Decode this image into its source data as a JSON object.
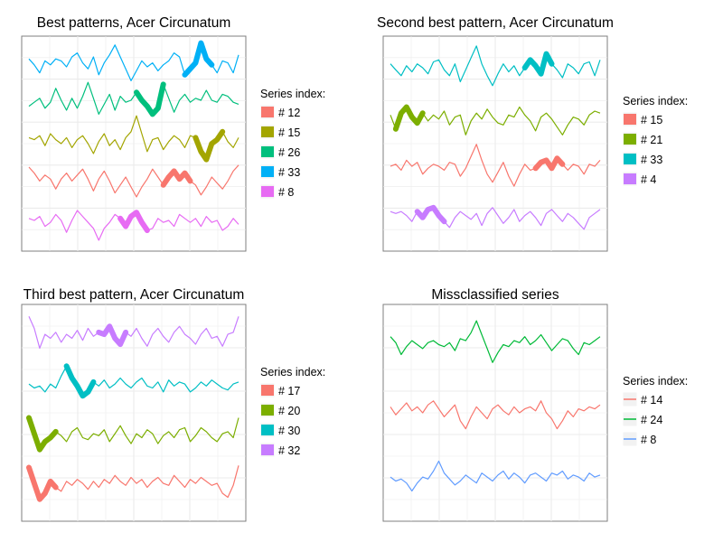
{
  "legend_title": "Series index:",
  "colors": {
    "red": "#F8766D",
    "olive": "#A3A500",
    "green": "#00BF7D",
    "blue": "#00B0F6",
    "magenta": "#E76BF3",
    "green4": "#7CAE00",
    "cyan": "#00BFC4",
    "purple": "#C77CFF",
    "green3": "#00BA38",
    "blue3": "#619CFF"
  },
  "chart_data": [
    {
      "type": "line",
      "title": "Best patterns, Acer Circunatum",
      "xlabel": "",
      "ylabel": "",
      "grid": true,
      "axes_ticks": false,
      "legend_placement": "right",
      "series": [
        {
          "name": "# 12",
          "color": "red",
          "offset": 1,
          "values": [
            0.8,
            0.5,
            0.1,
            0.4,
            0.2,
            -0.3,
            0.2,
            0.5,
            0.1,
            0.4,
            0.7,
            0.2,
            -0.4,
            0.2,
            0.6,
            0.1,
            -0.5,
            -0.1,
            0.3,
            -0.2,
            -0.7,
            -0.2,
            0.2,
            0.7,
            0.3,
            -0.1,
            0.3,
            0.6,
            0.2,
            0.5,
            0.1,
            -0.1,
            -0.6,
            -0.2,
            0.3,
            0.0,
            -0.3,
            0.1,
            0.6,
            0.9
          ],
          "highlight": [
            25,
            30
          ]
        },
        {
          "name": "# 15",
          "color": "olive",
          "offset": 2,
          "values": [
            0.3,
            0.2,
            0.4,
            -0.1,
            0.5,
            0.2,
            0.0,
            0.3,
            -0.2,
            0.2,
            0.4,
            0.0,
            -0.5,
            0.1,
            0.5,
            -0.1,
            0.2,
            -0.3,
            0.3,
            0.6,
            1.4,
            0.5,
            -0.4,
            0.2,
            0.3,
            -0.3,
            0.1,
            0.4,
            0.2,
            -0.2,
            0.4,
            0.3,
            -0.4,
            -0.8,
            0.0,
            0.2,
            0.6,
            0.1,
            -0.2,
            0.3
          ],
          "highlight": [
            31,
            36
          ]
        },
        {
          "name": "# 26",
          "color": "green",
          "offset": 3,
          "values": [
            -0.1,
            0.1,
            0.3,
            -0.2,
            0.1,
            0.8,
            0.2,
            -0.3,
            0.3,
            -0.2,
            0.4,
            1.1,
            0.3,
            -0.5,
            0.0,
            0.5,
            -0.3,
            0.4,
            0.1,
            0.2,
            0.6,
            0.2,
            -0.1,
            -0.5,
            -0.2,
            1.0,
            0.3,
            -0.4,
            0.2,
            0.5,
            0.1,
            0.3,
            0.2,
            0.7,
            0.2,
            0.1,
            0.5,
            0.4,
            0.1,
            0.0
          ],
          "highlight": [
            20,
            25
          ]
        },
        {
          "name": "# 33",
          "color": "blue",
          "offset": 4,
          "values": [
            0.3,
            0.0,
            -0.4,
            0.2,
            0.0,
            0.3,
            0.2,
            -0.1,
            0.4,
            0.6,
            0.1,
            -0.2,
            0.4,
            -0.5,
            0.1,
            0.5,
            1.0,
            0.4,
            -0.2,
            -0.8,
            -0.3,
            0.2,
            -0.1,
            0.1,
            -0.3,
            0.0,
            0.2,
            0.6,
            0.4,
            -0.5,
            -0.2,
            0.1,
            1.1,
            0.3,
            0.0,
            -0.4,
            0.2,
            0.1,
            -0.4,
            0.5
          ],
          "highlight": [
            29,
            34
          ]
        },
        {
          "name": "# 8",
          "color": "magenta",
          "offset": 0,
          "values": [
            0.2,
            0.1,
            0.3,
            -0.2,
            0.0,
            0.4,
            0.1,
            -0.5,
            0.1,
            0.6,
            0.3,
            0.0,
            -0.3,
            -0.9,
            -0.3,
            0.0,
            0.4,
            0.2,
            -0.2,
            0.3,
            0.5,
            0.0,
            -0.4,
            -0.3,
            0.2,
            0.0,
            0.1,
            -0.2,
            0.4,
            0.2,
            0.0,
            0.2,
            -0.2,
            0.3,
            0.0,
            0.1,
            -0.4,
            -0.2,
            0.2,
            -0.1
          ],
          "highlight": [
            17,
            22
          ]
        }
      ]
    },
    {
      "type": "line",
      "title": "Second best pattern, Acer Circunatum",
      "xlabel": "",
      "ylabel": "",
      "grid": true,
      "axes_ticks": false,
      "legend_placement": "right",
      "series": [
        {
          "name": "# 15",
          "color": "red",
          "offset": 1,
          "values": [
            0.1,
            0.2,
            -0.1,
            0.4,
            0.1,
            0.3,
            -0.3,
            0.0,
            0.2,
            0.1,
            -0.1,
            0.3,
            0.2,
            -0.4,
            0.0,
            0.6,
            1.2,
            0.4,
            -0.3,
            -0.7,
            -0.2,
            0.3,
            -0.4,
            -0.9,
            -0.3,
            0.2,
            -0.1,
            0.0,
            0.3,
            0.4,
            0.0,
            0.5,
            0.2,
            -0.1,
            0.2,
            0.1,
            -0.3,
            0.2,
            0.1,
            0.4
          ],
          "highlight": [
            27,
            32
          ]
        },
        {
          "name": "# 21",
          "color": "green4",
          "offset": 2,
          "values": [
            0.2,
            -0.5,
            0.3,
            0.6,
            0.1,
            -0.2,
            0.3,
            -0.1,
            0.2,
            0.0,
            0.4,
            -0.3,
            0.1,
            0.2,
            -0.8,
            -0.1,
            0.3,
            0.0,
            0.5,
            0.1,
            -0.2,
            -0.3,
            0.2,
            0.1,
            0.6,
            0.2,
            -0.1,
            -0.6,
            0.1,
            0.3,
            0.0,
            -0.4,
            -0.8,
            -0.3,
            0.1,
            0.0,
            -0.3,
            0.2,
            0.4,
            0.3
          ],
          "highlight": [
            1,
            6
          ]
        },
        {
          "name": "# 33",
          "color": "cyan",
          "offset": 3,
          "values": [
            0.3,
            0.0,
            -0.3,
            0.2,
            -0.1,
            0.3,
            0.1,
            -0.2,
            0.4,
            0.5,
            0.0,
            -0.3,
            0.3,
            -0.6,
            0.0,
            0.6,
            1.2,
            0.3,
            -0.3,
            -0.8,
            -0.2,
            0.3,
            -0.1,
            0.2,
            -0.3,
            0.1,
            0.5,
            0.2,
            -0.2,
            0.8,
            0.3,
            0.0,
            -0.4,
            0.3,
            0.1,
            -0.2,
            0.3,
            0.4,
            -0.3,
            0.5
          ],
          "highlight": [
            25,
            30
          ]
        },
        {
          "name": "# 4",
          "color": "purple",
          "offset": 0,
          "values": [
            0.3,
            0.2,
            0.3,
            0.1,
            -0.2,
            0.3,
            0.0,
            0.4,
            0.5,
            0.1,
            -0.2,
            -0.5,
            0.0,
            0.3,
            0.1,
            -0.1,
            0.2,
            -0.4,
            0.2,
            0.5,
            0.1,
            -0.3,
            0.0,
            0.4,
            -0.2,
            0.1,
            0.3,
            0.0,
            -0.4,
            0.2,
            0.4,
            0.1,
            -0.2,
            0.2,
            0.0,
            -0.3,
            -0.6,
            0.0,
            0.2,
            0.4
          ],
          "highlight": [
            5,
            10
          ]
        }
      ]
    },
    {
      "type": "line",
      "title": "Third best pattern, Acer Circunatum",
      "xlabel": "",
      "ylabel": "",
      "grid": true,
      "axes_ticks": false,
      "legend_placement": "right",
      "series": [
        {
          "name": "# 17",
          "color": "red",
          "offset": 0,
          "values": [
            1.0,
            0.2,
            -0.6,
            -0.3,
            0.3,
            0.0,
            -0.2,
            0.3,
            0.1,
            0.4,
            0.2,
            -0.1,
            0.3,
            0.0,
            0.4,
            0.2,
            0.6,
            0.3,
            0.1,
            0.5,
            0.2,
            0.4,
            0.0,
            0.3,
            0.5,
            0.2,
            0.1,
            0.6,
            0.3,
            0.0,
            0.4,
            0.2,
            0.5,
            0.3,
            0.1,
            0.2,
            -0.3,
            -0.5,
            0.1,
            1.1
          ],
          "highlight": [
            0,
            5
          ]
        },
        {
          "name": "# 20",
          "color": "green4",
          "offset": 1,
          "values": [
            1.0,
            0.2,
            -0.6,
            -0.2,
            0.0,
            0.3,
            0.1,
            -0.2,
            0.3,
            0.5,
            0.0,
            -0.1,
            0.2,
            0.1,
            0.4,
            -0.2,
            0.2,
            0.6,
            0.1,
            -0.3,
            0.2,
            0.0,
            0.4,
            0.2,
            -0.3,
            0.1,
            0.3,
            0.0,
            0.4,
            0.5,
            -0.2,
            0.1,
            0.5,
            0.3,
            0.0,
            -0.2,
            0.2,
            0.3,
            0.0,
            1.0
          ],
          "highlight": [
            0,
            5
          ]
        },
        {
          "name": "# 30",
          "color": "cyan",
          "offset": 2,
          "values": [
            0.2,
            0.0,
            0.1,
            -0.2,
            0.2,
            0.0,
            0.6,
            1.1,
            0.5,
            0.1,
            -0.4,
            -0.2,
            0.3,
            0.1,
            0.4,
            0.0,
            0.2,
            0.5,
            0.2,
            0.0,
            0.3,
            0.5,
            0.1,
            0.0,
            0.3,
            -0.2,
            0.4,
            0.1,
            0.3,
            0.2,
            -0.2,
            0.0,
            0.3,
            0.1,
            0.4,
            0.2,
            0.0,
            -0.1,
            0.2,
            0.3
          ],
          "highlight": [
            7,
            12
          ]
        },
        {
          "name": "# 32",
          "color": "purple",
          "offset": 3,
          "values": [
            1.1,
            0.5,
            -0.5,
            0.2,
            0.0,
            0.3,
            -0.2,
            0.2,
            0.0,
            0.4,
            -0.1,
            0.5,
            0.1,
            0.3,
            0.2,
            0.6,
            0.0,
            -0.3,
            0.3,
            0.1,
            0.5,
            0.0,
            -0.4,
            0.2,
            0.5,
            0.1,
            -0.2,
            0.3,
            0.6,
            0.2,
            0.0,
            -0.3,
            0.2,
            0.5,
            0.0,
            0.1,
            -0.4,
            0.2,
            0.3,
            1.1
          ],
          "highlight": [
            13,
            18
          ]
        }
      ]
    },
    {
      "type": "line",
      "title": "Missclassified series",
      "xlabel": "",
      "ylabel": "",
      "grid": true,
      "axes_ticks": false,
      "legend_placement": "right",
      "series": [
        {
          "name": "# 14",
          "color": "red",
          "offset": 1,
          "values": [
            0.3,
            -0.1,
            0.2,
            0.5,
            0.1,
            0.3,
            0.0,
            0.4,
            0.6,
            0.2,
            -0.2,
            0.1,
            0.4,
            -0.4,
            -0.8,
            -0.2,
            0.3,
            0.0,
            -0.3,
            0.2,
            0.4,
            0.1,
            -0.1,
            0.3,
            0.0,
            0.2,
            0.3,
            0.1,
            0.6,
            0.0,
            -0.3,
            -0.8,
            -0.4,
            0.1,
            -0.2,
            0.2,
            0.1,
            0.3,
            0.2,
            0.4
          ],
          "highlight": []
        },
        {
          "name": "# 24",
          "color": "green3",
          "offset": 2,
          "values": [
            0.5,
            0.2,
            -0.4,
            0.0,
            0.3,
            0.1,
            -0.1,
            0.2,
            0.3,
            0.1,
            0.0,
            0.2,
            -0.2,
            0.4,
            0.3,
            0.7,
            1.3,
            0.6,
            -0.1,
            -0.8,
            -0.3,
            0.1,
            0.0,
            0.3,
            0.2,
            0.5,
            0.1,
            0.3,
            0.6,
            0.2,
            -0.2,
            0.1,
            0.4,
            0.3,
            -0.1,
            -0.4,
            0.2,
            0.1,
            0.3,
            0.5
          ],
          "highlight": []
        },
        {
          "name": "# 8",
          "color": "blue3",
          "offset": 0,
          "values": [
            0.1,
            -0.1,
            0.0,
            -0.2,
            -0.6,
            -0.2,
            0.1,
            0.0,
            0.4,
            0.9,
            0.3,
            0.0,
            -0.3,
            -0.1,
            0.2,
            0.0,
            -0.2,
            0.3,
            0.1,
            -0.1,
            0.2,
            0.4,
            0.0,
            0.3,
            0.1,
            -0.2,
            0.2,
            0.3,
            0.1,
            -0.1,
            0.3,
            0.2,
            0.4,
            0.0,
            0.2,
            0.1,
            -0.1,
            0.3,
            0.1,
            0.2
          ],
          "highlight": []
        }
      ]
    }
  ]
}
